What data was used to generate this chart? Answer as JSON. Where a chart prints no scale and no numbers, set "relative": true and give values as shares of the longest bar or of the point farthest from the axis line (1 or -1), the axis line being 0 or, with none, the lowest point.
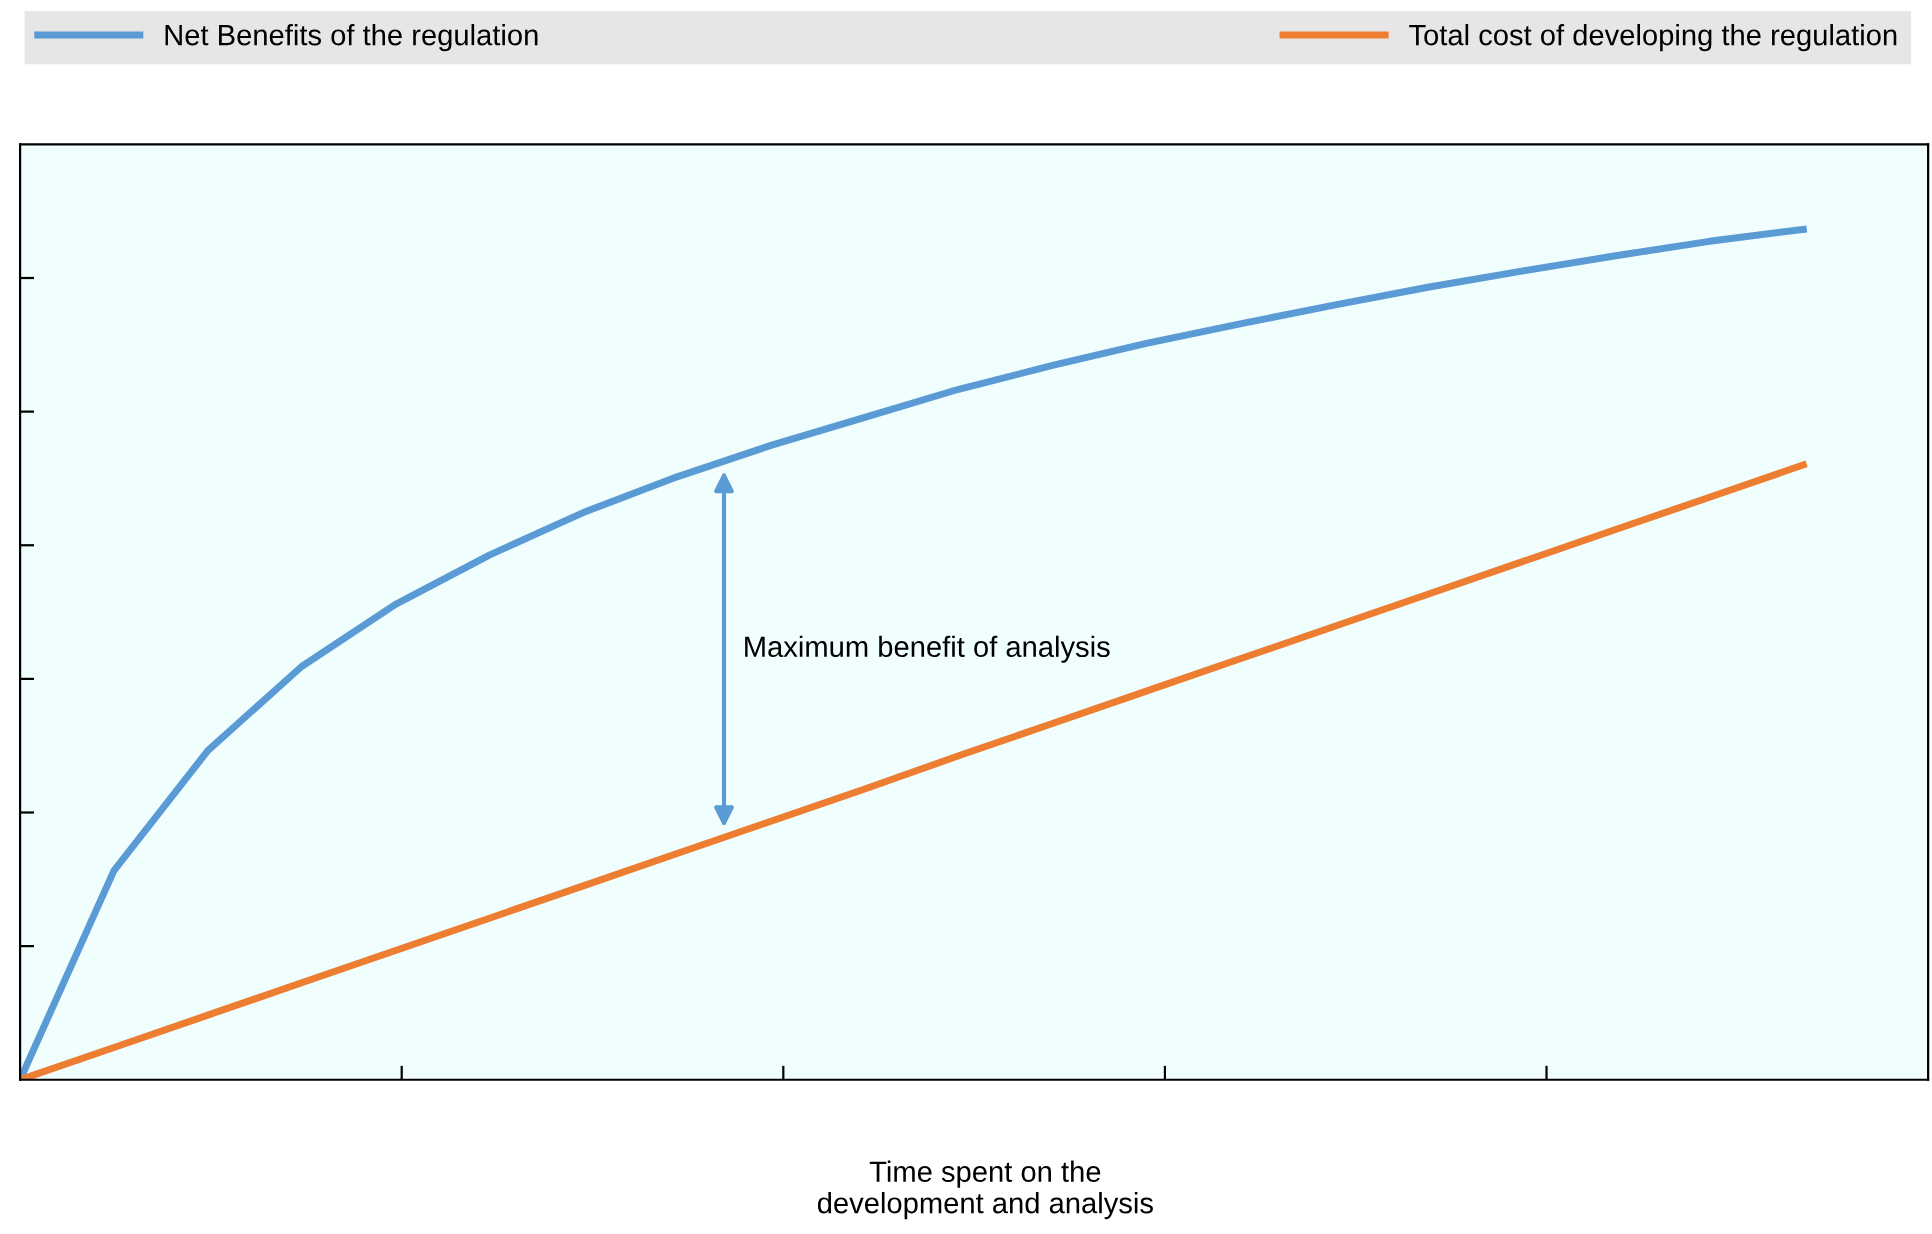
{
  "chart_data": {
    "type": "line",
    "relative": true,
    "categories": [
      null,
      null,
      null,
      null,
      null,
      null,
      null,
      null,
      null,
      null,
      null,
      null,
      null,
      null,
      null,
      null,
      null,
      null,
      null,
      null
    ],
    "series": [
      {
        "name": "Net Benefits of the regulation",
        "color": "#5b9bd5",
        "values": [
          0,
          0.246,
          0.387,
          0.486,
          0.559,
          0.617,
          0.667,
          0.709,
          0.746,
          0.779,
          0.812,
          0.84,
          0.866,
          0.889,
          0.911,
          0.932,
          0.951,
          0.969,
          0.986,
          1
        ]
      },
      {
        "name": "Total cost of developing the regulation",
        "color": "#ed7d31",
        "values": [
          0,
          0.038,
          0.076,
          0.114,
          0.152,
          0.19,
          0.228,
          0.266,
          0.304,
          0.342,
          0.381,
          0.419,
          0.457,
          0.495,
          0.533,
          0.571,
          0.609,
          0.647,
          0.685,
          0.723
        ]
      }
    ],
    "xlabel": "Time spent on the\ndevelopment and analysis",
    "annotations": [
      "Maximum benefit of analysis"
    ],
    "legend": "top",
    "grid": false,
    "marker": "none",
    "line_style": "solid"
  }
}
